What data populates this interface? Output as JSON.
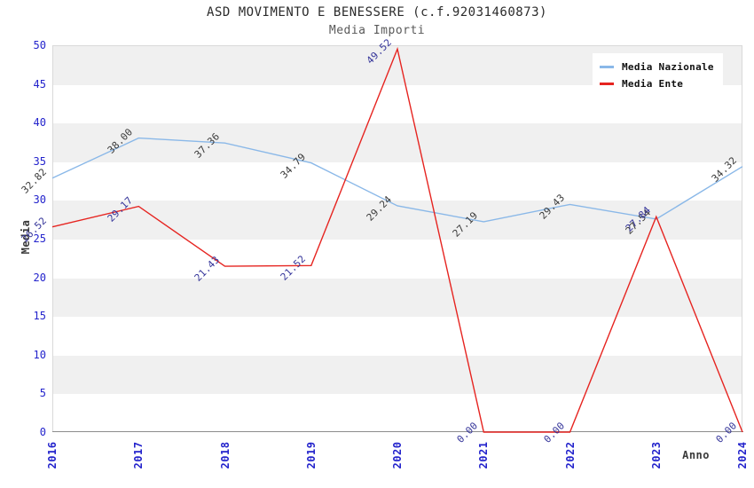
{
  "chart_data": {
    "type": "line",
    "title": "ASD MOVIMENTO E BENESSERE (c.f.92031460873)",
    "subtitle": "Media Importi",
    "x": [
      "2016",
      "2017",
      "2018",
      "2019",
      "2020",
      "2021",
      "2022",
      "2023",
      "2024"
    ],
    "series": [
      {
        "name": "Media Nazionale",
        "color": "#8ab8e8",
        "label_color": "#3a3a3a",
        "values": [
          32.82,
          38.0,
          37.36,
          34.79,
          29.24,
          27.19,
          29.43,
          27.54,
          34.32
        ]
      },
      {
        "name": "Media Ente",
        "color": "#e62420",
        "label_color": "#333399",
        "values": [
          26.52,
          29.17,
          21.43,
          21.52,
          49.52,
          0.0,
          0.0,
          27.84,
          0.0
        ]
      }
    ],
    "xlabel": "Anno",
    "ylabel": "Media",
    "ylim": [
      0,
      50
    ],
    "ytick_step": 5,
    "yticks": [
      0,
      5,
      10,
      15,
      20,
      25,
      30,
      35,
      40,
      45,
      50
    ],
    "grid": "alternating-horizontal-bands",
    "legend_position": "top-right",
    "point_label_format": "2-decimals rotated 45deg at each data point",
    "colors": {
      "tick_labels": "#2323cc",
      "band_gray": "#f0f0f0",
      "plot_border": "#d9d9d9",
      "x_axis_line": "#8c8c8c"
    }
  }
}
